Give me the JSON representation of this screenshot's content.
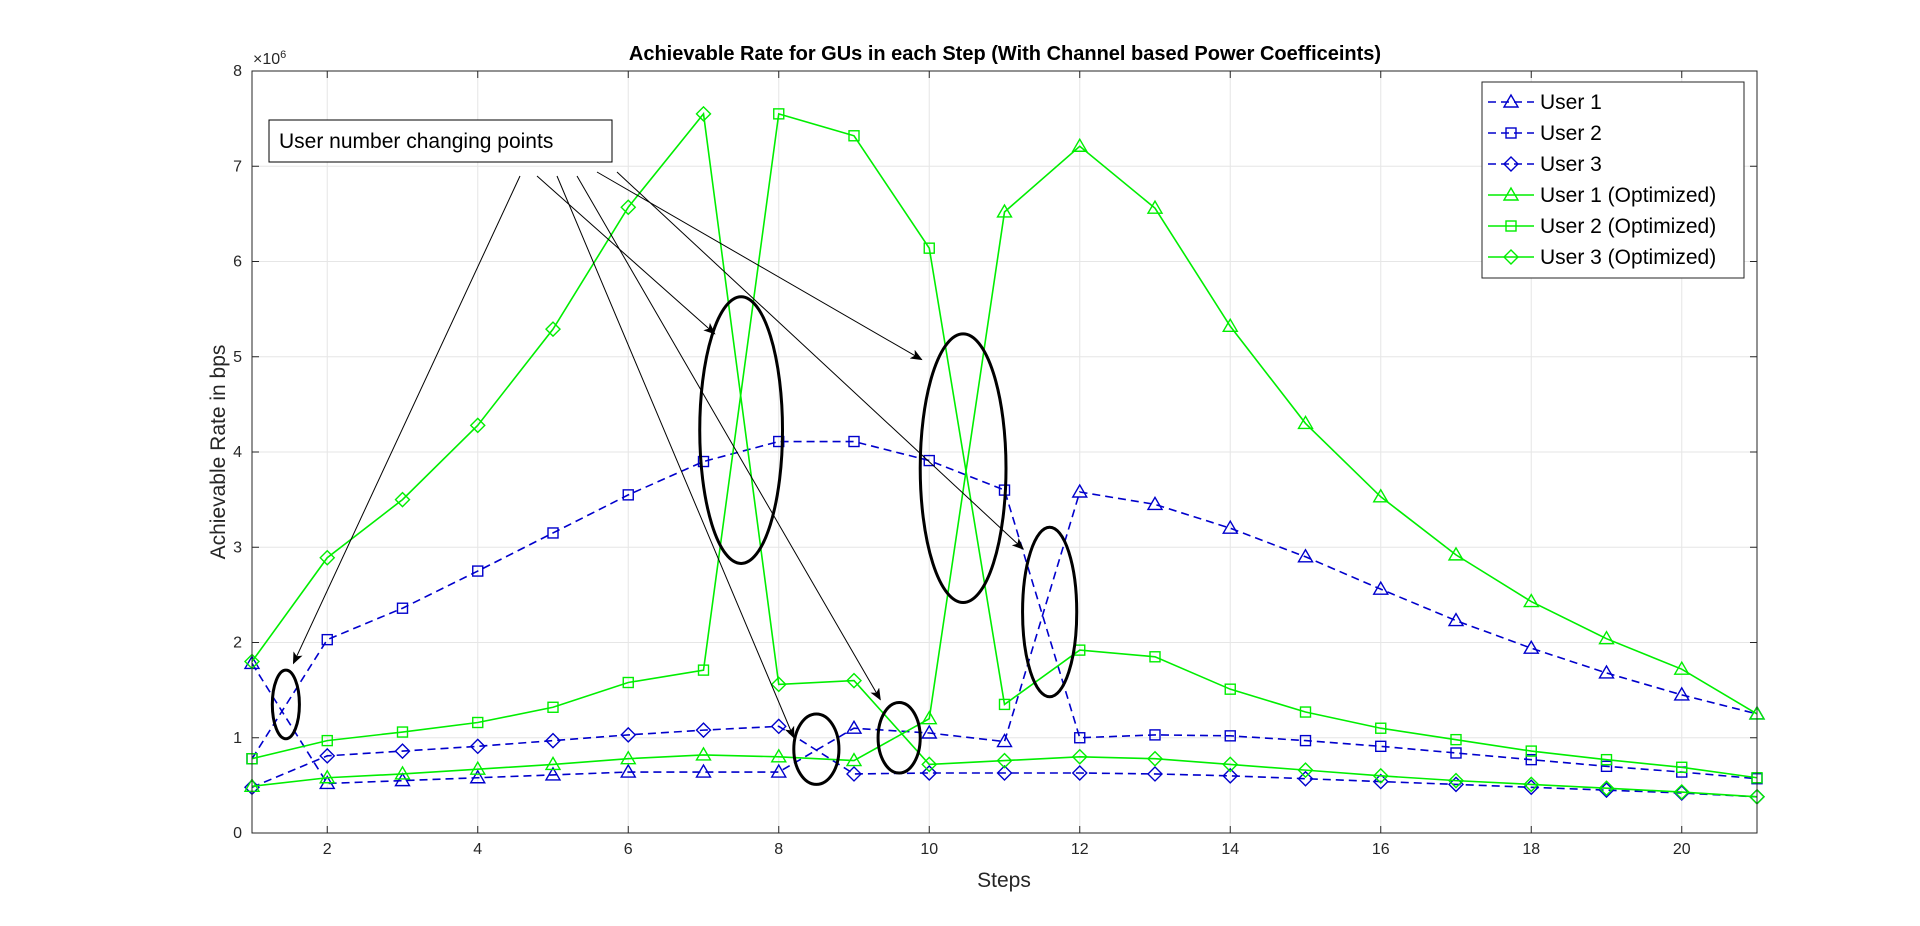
{
  "chart_data": {
    "type": "line",
    "title": "Achievable Rate for GUs in each Step (With Channel based Power Coefficeints)",
    "xlabel": "Steps",
    "ylabel": "Achievable Rate in bps",
    "y_multiplier_label": "×10",
    "y_multiplier_exp": "6",
    "xlim": [
      1,
      21
    ],
    "ylim": [
      0,
      8
    ],
    "xticks": [
      2,
      4,
      6,
      8,
      10,
      12,
      14,
      16,
      18,
      20
    ],
    "yticks": [
      0,
      1,
      2,
      3,
      4,
      5,
      6,
      7,
      8
    ],
    "grid": true,
    "legend_position": "top-right",
    "x": [
      1,
      2,
      3,
      4,
      5,
      6,
      7,
      8,
      9,
      10,
      11,
      12,
      13,
      14,
      15,
      16,
      17,
      18,
      19,
      20,
      21
    ],
    "series": [
      {
        "name": "User 1",
        "color": "#0000cc",
        "dash": true,
        "marker": "triangle",
        "values": [
          1.78,
          0.52,
          0.55,
          0.58,
          0.61,
          0.64,
          0.64,
          0.64,
          1.1,
          1.05,
          0.96,
          3.58,
          3.45,
          3.2,
          2.9,
          2.56,
          2.23,
          1.94,
          1.68,
          1.45,
          1.25
        ]
      },
      {
        "name": "User 2",
        "color": "#0000cc",
        "dash": true,
        "marker": "square",
        "values": [
          0.78,
          2.03,
          2.36,
          2.75,
          3.15,
          3.55,
          3.9,
          4.11,
          4.11,
          3.91,
          3.6,
          1.0,
          1.03,
          1.02,
          0.97,
          0.91,
          0.84,
          0.77,
          0.7,
          0.64,
          0.57
        ]
      },
      {
        "name": "User 3",
        "color": "#0000cc",
        "dash": true,
        "marker": "diamond",
        "values": [
          0.48,
          0.81,
          0.86,
          0.91,
          0.97,
          1.03,
          1.08,
          1.12,
          0.62,
          0.63,
          0.63,
          0.63,
          0.62,
          0.6,
          0.57,
          0.54,
          0.51,
          0.48,
          0.45,
          0.42,
          0.38
        ]
      },
      {
        "name": "User 1 (Optimized)",
        "color": "#00ee00",
        "dash": false,
        "marker": "triangle",
        "values": [
          0.49,
          0.58,
          0.62,
          0.67,
          0.72,
          0.78,
          0.82,
          0.8,
          0.76,
          1.2,
          6.52,
          7.21,
          6.56,
          5.32,
          4.3,
          3.53,
          2.92,
          2.43,
          2.04,
          1.72,
          1.25
        ]
      },
      {
        "name": "User 2 (Optimized)",
        "color": "#00ee00",
        "dash": false,
        "marker": "square",
        "values": [
          0.78,
          0.97,
          1.06,
          1.16,
          1.32,
          1.58,
          1.71,
          7.55,
          7.32,
          6.14,
          1.35,
          1.92,
          1.85,
          1.51,
          1.27,
          1.1,
          0.98,
          0.86,
          0.77,
          0.69,
          0.58
        ]
      },
      {
        "name": "User 3 (Optimized)",
        "color": "#00ee00",
        "dash": false,
        "marker": "diamond",
        "values": [
          1.8,
          2.89,
          3.5,
          4.28,
          5.29,
          6.57,
          7.55,
          1.56,
          1.6,
          0.72,
          0.76,
          0.8,
          0.78,
          0.72,
          0.66,
          0.6,
          0.55,
          0.51,
          0.47,
          0.43,
          0.38
        ]
      }
    ],
    "annotation": {
      "text": "User number changing points",
      "ellipses": [
        {
          "x": 1.45,
          "y": 1.35,
          "rx": 0.18,
          "ry": 0.36
        },
        {
          "x": 7.5,
          "y": 4.23,
          "rx": 0.55,
          "ry": 1.4
        },
        {
          "x": 8.5,
          "y": 0.88,
          "rx": 0.3,
          "ry": 0.37
        },
        {
          "x": 9.6,
          "y": 1.0,
          "rx": 0.28,
          "ry": 0.37
        },
        {
          "x": 10.45,
          "y": 3.83,
          "rx": 0.57,
          "ry": 1.41
        },
        {
          "x": 11.6,
          "y": 2.32,
          "rx": 0.36,
          "ry": 0.89
        }
      ],
      "arrow_targets": [
        {
          "x": 1.55,
          "y": 1.78
        },
        {
          "x": 7.15,
          "y": 5.24
        },
        {
          "x": 8.2,
          "y": 1.0
        },
        {
          "x": 9.35,
          "y": 1.4
        },
        {
          "x": 9.9,
          "y": 4.97
        },
        {
          "x": 11.25,
          "y": 2.98
        }
      ]
    }
  }
}
